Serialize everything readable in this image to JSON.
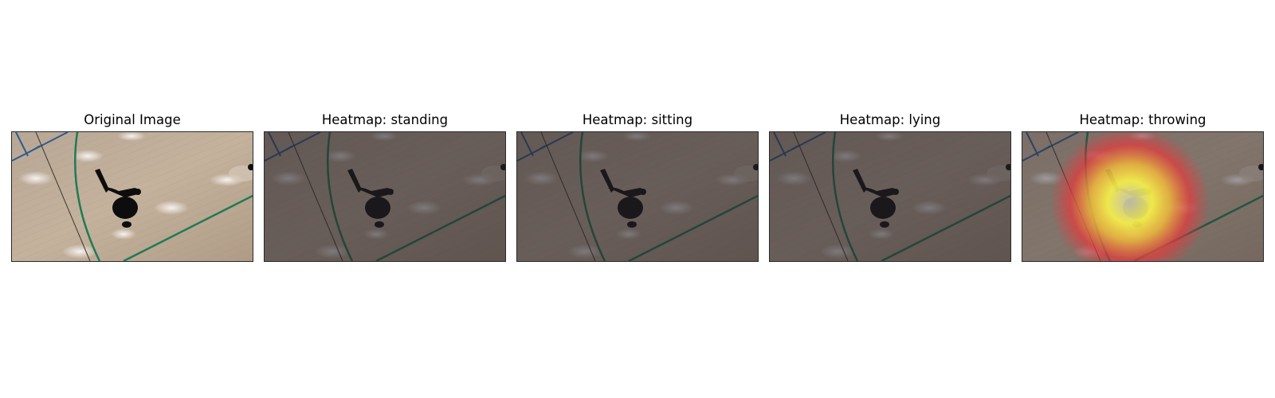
{
  "panels": [
    {
      "title": "Original Image",
      "overlay": "none"
    },
    {
      "title": "Heatmap: standing",
      "overlay": "dim"
    },
    {
      "title": "Heatmap: sitting",
      "overlay": "dim"
    },
    {
      "title": "Heatmap: lying",
      "overlay": "dim"
    },
    {
      "title": "Heatmap: throwing",
      "overlay": "heat"
    }
  ],
  "heatmap_colors": {
    "core": "#f7f24a",
    "mid": "#f0b83c",
    "edge": "#e8393c"
  }
}
